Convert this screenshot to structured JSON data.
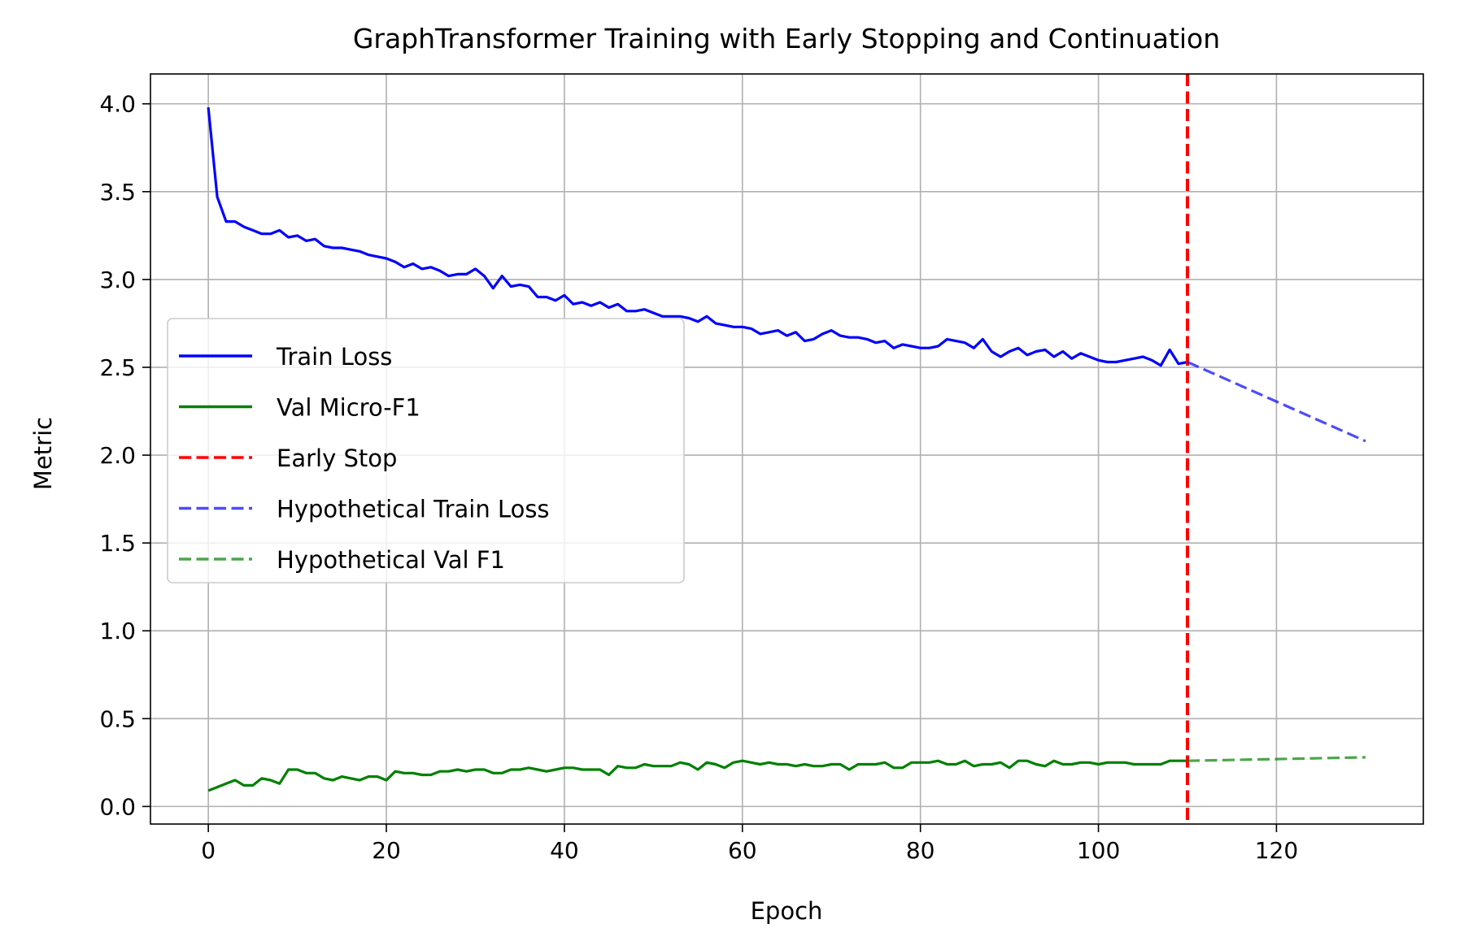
{
  "chart_data": {
    "type": "line",
    "title": "GraphTransformer Training with Early Stopping and Continuation",
    "xlabel": "Epoch",
    "ylabel": "Metric",
    "xlim": [
      -6.5,
      136.5
    ],
    "ylim": [
      -0.1,
      4.17
    ],
    "xticks": [
      0,
      20,
      40,
      60,
      80,
      100,
      120
    ],
    "yticks": [
      0.0,
      0.5,
      1.0,
      1.5,
      2.0,
      2.5,
      3.0,
      3.5,
      4.0
    ],
    "xtick_labels": [
      "0",
      "20",
      "40",
      "60",
      "80",
      "100",
      "120"
    ],
    "ytick_labels": [
      "0.0",
      "0.5",
      "1.0",
      "1.5",
      "2.0",
      "2.5",
      "3.0",
      "3.5",
      "4.0"
    ],
    "grid": true,
    "legend_position": "center-left",
    "series": [
      {
        "name": "Train Loss",
        "style": "solid",
        "color": "#0000ff",
        "x_start": 0,
        "values": [
          3.98,
          3.47,
          3.33,
          3.33,
          3.3,
          3.28,
          3.26,
          3.26,
          3.28,
          3.24,
          3.25,
          3.22,
          3.23,
          3.19,
          3.18,
          3.18,
          3.17,
          3.16,
          3.14,
          3.13,
          3.12,
          3.1,
          3.07,
          3.09,
          3.06,
          3.07,
          3.05,
          3.02,
          3.03,
          3.03,
          3.06,
          3.02,
          2.95,
          3.02,
          2.96,
          2.97,
          2.96,
          2.9,
          2.9,
          2.88,
          2.91,
          2.86,
          2.87,
          2.85,
          2.87,
          2.84,
          2.86,
          2.82,
          2.82,
          2.83,
          2.81,
          2.79,
          2.79,
          2.79,
          2.78,
          2.76,
          2.79,
          2.75,
          2.74,
          2.73,
          2.73,
          2.72,
          2.69,
          2.7,
          2.71,
          2.68,
          2.7,
          2.65,
          2.66,
          2.69,
          2.71,
          2.68,
          2.67,
          2.67,
          2.66,
          2.64,
          2.65,
          2.61,
          2.63,
          2.62,
          2.61,
          2.61,
          2.62,
          2.66,
          2.65,
          2.64,
          2.61,
          2.66,
          2.59,
          2.56,
          2.59,
          2.61,
          2.57,
          2.59,
          2.6,
          2.56,
          2.59,
          2.55,
          2.58,
          2.56,
          2.54,
          2.53,
          2.53,
          2.54,
          2.55,
          2.56,
          2.54,
          2.51,
          2.6,
          2.52,
          2.53
        ]
      },
      {
        "name": "Val Micro-F1",
        "style": "solid",
        "color": "#008000",
        "x_start": 0,
        "values": [
          0.09,
          0.11,
          0.13,
          0.15,
          0.12,
          0.12,
          0.16,
          0.15,
          0.13,
          0.21,
          0.21,
          0.19,
          0.19,
          0.16,
          0.15,
          0.17,
          0.16,
          0.15,
          0.17,
          0.17,
          0.15,
          0.2,
          0.19,
          0.19,
          0.18,
          0.18,
          0.2,
          0.2,
          0.21,
          0.2,
          0.21,
          0.21,
          0.19,
          0.19,
          0.21,
          0.21,
          0.22,
          0.21,
          0.2,
          0.21,
          0.22,
          0.22,
          0.21,
          0.21,
          0.21,
          0.18,
          0.23,
          0.22,
          0.22,
          0.24,
          0.23,
          0.23,
          0.23,
          0.25,
          0.24,
          0.21,
          0.25,
          0.24,
          0.22,
          0.25,
          0.26,
          0.25,
          0.24,
          0.25,
          0.24,
          0.24,
          0.23,
          0.24,
          0.23,
          0.23,
          0.24,
          0.24,
          0.21,
          0.24,
          0.24,
          0.24,
          0.25,
          0.22,
          0.22,
          0.25,
          0.25,
          0.25,
          0.26,
          0.24,
          0.24,
          0.26,
          0.23,
          0.24,
          0.24,
          0.25,
          0.22,
          0.26,
          0.26,
          0.24,
          0.23,
          0.26,
          0.24,
          0.24,
          0.25,
          0.25,
          0.24,
          0.25,
          0.25,
          0.25,
          0.24,
          0.24,
          0.24,
          0.24,
          0.26,
          0.26,
          0.26
        ]
      },
      {
        "name": "Early Stop",
        "style": "dashed",
        "color": "#ff0000",
        "vertical_line_x": 110
      },
      {
        "name": "Hypothetical Train Loss",
        "style": "dashed",
        "color": "#0000ff",
        "x": [
          110,
          130
        ],
        "values": [
          2.53,
          2.08
        ]
      },
      {
        "name": "Hypothetical Val F1",
        "style": "dashed",
        "color": "#008000",
        "x": [
          110,
          130
        ],
        "values": [
          0.26,
          0.28
        ]
      }
    ]
  }
}
